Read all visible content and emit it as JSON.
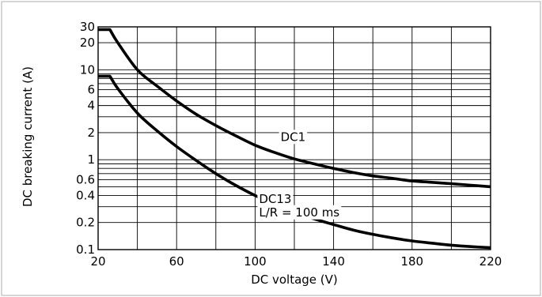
{
  "chart_data": {
    "type": "line",
    "title": "",
    "xlabel": "DC voltage (V)",
    "ylabel": "DC breaking current (A)",
    "xlim": [
      20,
      220
    ],
    "ylim": [
      0.1,
      30
    ],
    "yscale": "log",
    "grid": true,
    "x_grid_values": [
      20,
      40,
      60,
      80,
      100,
      120,
      140,
      160,
      180,
      200,
      220
    ],
    "y_grid_values": [
      0.1,
      0.2,
      0.3,
      0.4,
      0.5,
      0.6,
      0.7,
      0.8,
      0.9,
      1,
      2,
      3,
      4,
      5,
      6,
      7,
      8,
      9,
      10,
      20,
      30
    ],
    "x_ticks": [
      {
        "value": 20,
        "label": "20"
      },
      {
        "value": 60,
        "label": "60"
      },
      {
        "value": 100,
        "label": "100"
      },
      {
        "value": 140,
        "label": "140"
      },
      {
        "value": 180,
        "label": "180"
      },
      {
        "value": 220,
        "label": "220"
      }
    ],
    "y_ticks": [
      {
        "value": 30,
        "label": "30"
      },
      {
        "value": 20,
        "label": "20"
      },
      {
        "value": 10,
        "label": "10"
      },
      {
        "value": 6,
        "label": "6"
      },
      {
        "value": 4,
        "label": "4"
      },
      {
        "value": 2,
        "label": "2"
      },
      {
        "value": 1,
        "label": "1"
      },
      {
        "value": 0.6,
        "label": "0.6"
      },
      {
        "value": 0.4,
        "label": "0.4"
      },
      {
        "value": 0.2,
        "label": "0.2"
      },
      {
        "value": 0.1,
        "label": "0.1"
      }
    ],
    "series": [
      {
        "name": "DC1",
        "x": [
          20,
          26,
          30,
          40,
          50,
          60,
          70,
          80,
          90,
          100,
          110,
          120,
          130,
          140,
          150,
          160,
          170,
          180,
          190,
          200,
          210,
          220
        ],
        "y": [
          28,
          28,
          20,
          10,
          6.6,
          4.5,
          3.2,
          2.4,
          1.85,
          1.45,
          1.2,
          1.02,
          0.9,
          0.8,
          0.72,
          0.66,
          0.62,
          0.58,
          0.56,
          0.54,
          0.52,
          0.5
        ]
      },
      {
        "name": "DC13",
        "x": [
          20,
          26,
          30,
          40,
          50,
          60,
          70,
          80,
          90,
          100,
          110,
          120,
          130,
          140,
          150,
          160,
          170,
          180,
          190,
          200,
          210,
          220
        ],
        "y": [
          8.5,
          8.5,
          6.2,
          3.3,
          2.1,
          1.4,
          0.98,
          0.7,
          0.52,
          0.4,
          0.32,
          0.26,
          0.22,
          0.19,
          0.165,
          0.148,
          0.135,
          0.125,
          0.118,
          0.112,
          0.108,
          0.105
        ]
      }
    ],
    "annotations": [
      {
        "text": "DC1",
        "x": 113,
        "y": 1.62
      },
      {
        "text": "DC13",
        "x": 102,
        "y": 0.33
      },
      {
        "text": "L/R = 100 ms",
        "x": 102,
        "y": 0.235
      }
    ]
  }
}
